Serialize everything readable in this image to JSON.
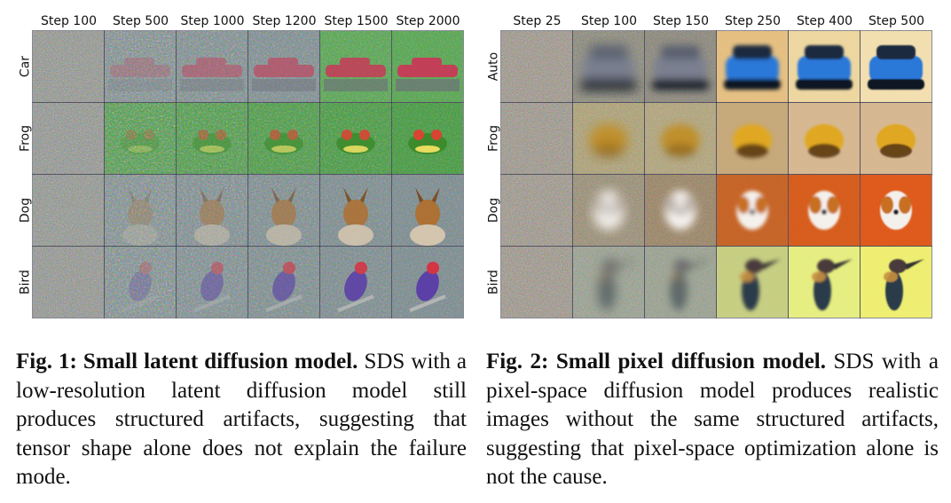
{
  "figure1": {
    "column_headers": [
      "Step 100",
      "Step 500",
      "Step 1000",
      "Step 1200",
      "Step 1500",
      "Step 2000"
    ],
    "row_labels": [
      "Car",
      "Frog",
      "Dog",
      "Bird"
    ],
    "caption_title": "Fig. 1: Small latent diffusion model.",
    "caption_body": "SDS with a low-resolution latent diffusion model still produces structured artifacts, suggesting that tensor shape alone does not explain the failure mode."
  },
  "figure2": {
    "column_headers": [
      "Step 25",
      "Step 100",
      "Step 150",
      "Step 250",
      "Step 400",
      "Step 500"
    ],
    "row_labels": [
      "Auto",
      "Frog",
      "Dog",
      "Bird"
    ],
    "caption_title": "Fig. 2: Small pixel diffusion model.",
    "caption_body": "SDS with a pixel-space diffusion model produces realistic images without the same structured artifacts, suggesting that pixel-space optimization alone is not the cause."
  }
}
